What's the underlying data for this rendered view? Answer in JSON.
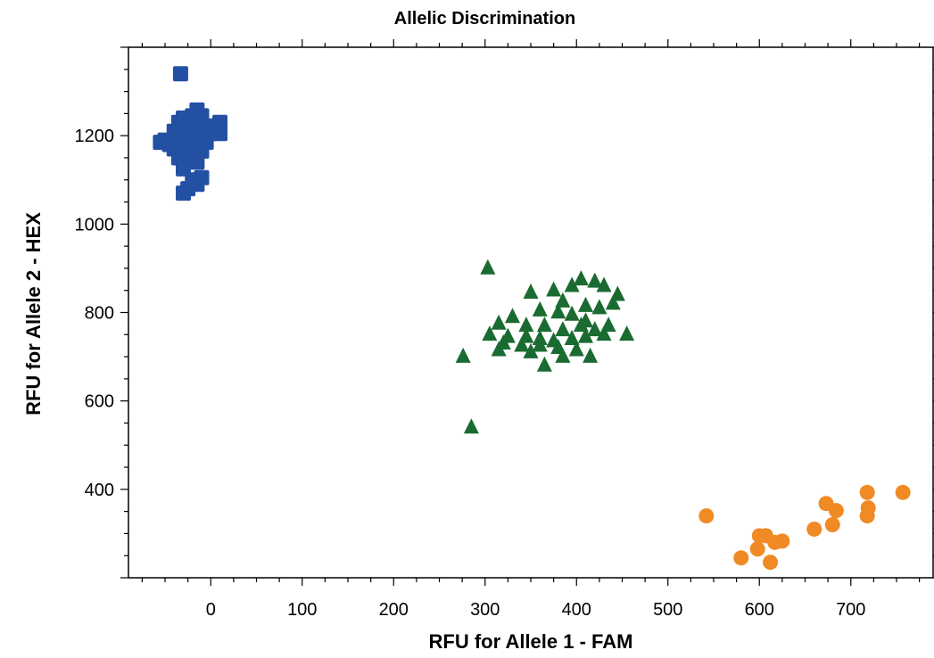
{
  "chart_data": {
    "type": "scatter",
    "title": "Allelic Discrimination",
    "xlabel": "RFU for Allele 1 - FAM",
    "ylabel": "RFU for Allele 2 - HEX",
    "xlim": [
      -90,
      790
    ],
    "ylim": [
      200,
      1400
    ],
    "xticks": [
      0,
      100,
      200,
      300,
      400,
      500,
      600,
      700
    ],
    "yticks": [
      400,
      600,
      800,
      1000,
      1200
    ],
    "grid": false,
    "series": [
      {
        "marker": "square",
        "color": "#2450a4",
        "points": [
          [
            -33,
            1340
          ],
          [
            -30,
            1240
          ],
          [
            -20,
            1245
          ],
          [
            -10,
            1245
          ],
          [
            -15,
            1258
          ],
          [
            -35,
            1230
          ],
          [
            -25,
            1225
          ],
          [
            -15,
            1220
          ],
          [
            -5,
            1222
          ],
          [
            -40,
            1210
          ],
          [
            -30,
            1205
          ],
          [
            -20,
            1200
          ],
          [
            -10,
            1205
          ],
          [
            0,
            1205
          ],
          [
            10,
            1230
          ],
          [
            10,
            1205
          ],
          [
            -50,
            1190
          ],
          [
            -55,
            1185
          ],
          [
            -45,
            1180
          ],
          [
            -35,
            1190
          ],
          [
            -25,
            1185
          ],
          [
            -15,
            1190
          ],
          [
            -5,
            1185
          ],
          [
            -40,
            1170
          ],
          [
            -30,
            1165
          ],
          [
            -20,
            1170
          ],
          [
            -10,
            1165
          ],
          [
            -35,
            1150
          ],
          [
            -25,
            1145
          ],
          [
            -15,
            1140
          ],
          [
            -30,
            1125
          ],
          [
            -20,
            1100
          ],
          [
            -10,
            1105
          ],
          [
            -25,
            1080
          ],
          [
            -15,
            1090
          ],
          [
            -30,
            1070
          ]
        ]
      },
      {
        "marker": "triangle",
        "color": "#1a6b31",
        "points": [
          [
            303,
            900
          ],
          [
            276,
            700
          ],
          [
            285,
            540
          ],
          [
            350,
            845
          ],
          [
            375,
            850
          ],
          [
            395,
            860
          ],
          [
            405,
            875
          ],
          [
            420,
            870
          ],
          [
            430,
            860
          ],
          [
            445,
            840
          ],
          [
            385,
            825
          ],
          [
            410,
            815
          ],
          [
            425,
            810
          ],
          [
            440,
            820
          ],
          [
            360,
            805
          ],
          [
            380,
            800
          ],
          [
            395,
            795
          ],
          [
            410,
            780
          ],
          [
            330,
            790
          ],
          [
            315,
            775
          ],
          [
            345,
            770
          ],
          [
            365,
            770
          ],
          [
            385,
            760
          ],
          [
            405,
            770
          ],
          [
            420,
            760
          ],
          [
            435,
            770
          ],
          [
            455,
            750
          ],
          [
            305,
            750
          ],
          [
            325,
            745
          ],
          [
            345,
            745
          ],
          [
            360,
            740
          ],
          [
            375,
            735
          ],
          [
            395,
            740
          ],
          [
            410,
            745
          ],
          [
            430,
            750
          ],
          [
            320,
            730
          ],
          [
            340,
            725
          ],
          [
            360,
            725
          ],
          [
            380,
            720
          ],
          [
            400,
            715
          ],
          [
            315,
            715
          ],
          [
            350,
            710
          ],
          [
            385,
            700
          ],
          [
            415,
            700
          ],
          [
            365,
            680
          ]
        ]
      },
      {
        "marker": "circle",
        "color": "#f08a24",
        "points": [
          [
            542,
            340
          ],
          [
            580,
            245
          ],
          [
            598,
            265
          ],
          [
            600,
            295
          ],
          [
            607,
            295
          ],
          [
            612,
            235
          ],
          [
            617,
            280
          ],
          [
            625,
            283
          ],
          [
            660,
            310
          ],
          [
            673,
            368
          ],
          [
            680,
            320
          ],
          [
            684,
            352
          ],
          [
            718,
            393
          ],
          [
            718,
            340
          ],
          [
            719,
            358
          ],
          [
            757,
            393
          ]
        ]
      }
    ]
  }
}
